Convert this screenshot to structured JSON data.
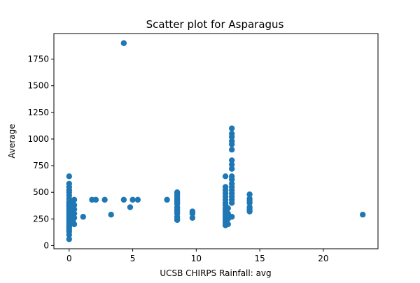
{
  "chart_data": {
    "type": "scatter",
    "title": "Scatter plot for Asparagus",
    "xlabel": "UCSB CHIRPS Rainfall: avg",
    "ylabel": "Average",
    "xlim": [
      -1.2,
      24.3
    ],
    "ylim": [
      -30,
      1990
    ],
    "xticks": [
      0,
      5,
      10,
      15,
      20
    ],
    "xtick_labels": [
      "0",
      "5",
      "10",
      "15",
      "20"
    ],
    "yticks": [
      0,
      250,
      500,
      750,
      1000,
      1250,
      1500,
      1750
    ],
    "ytick_labels": [
      "0",
      "250",
      "500",
      "750",
      "1000",
      "1250",
      "1500",
      "1750"
    ],
    "grid": false,
    "marker_color": "#1f77b4",
    "series": [
      {
        "points": [
          [
            0,
            60
          ],
          [
            0,
            100
          ],
          [
            0,
            130
          ],
          [
            0,
            150
          ],
          [
            0,
            170
          ],
          [
            0,
            190
          ],
          [
            0,
            210
          ],
          [
            0,
            230
          ],
          [
            0,
            250
          ],
          [
            0,
            270
          ],
          [
            0,
            290
          ],
          [
            0,
            310
          ],
          [
            0,
            330
          ],
          [
            0,
            350
          ],
          [
            0,
            370
          ],
          [
            0,
            390
          ],
          [
            0,
            410
          ],
          [
            0,
            440
          ],
          [
            0,
            470
          ],
          [
            0,
            500
          ],
          [
            0,
            520
          ],
          [
            0,
            550
          ],
          [
            0,
            580
          ],
          [
            0,
            650
          ],
          [
            0.1,
            200
          ],
          [
            0.1,
            240
          ],
          [
            0.1,
            280
          ],
          [
            0.1,
            320
          ],
          [
            0.1,
            360
          ],
          [
            0.1,
            400
          ],
          [
            0.2,
            210
          ],
          [
            0.2,
            250
          ],
          [
            0.2,
            290
          ],
          [
            0.2,
            330
          ],
          [
            0.2,
            370
          ],
          [
            0.2,
            420
          ],
          [
            0.3,
            230
          ],
          [
            0.3,
            270
          ],
          [
            0.3,
            310
          ],
          [
            0.3,
            350
          ],
          [
            0.3,
            390
          ],
          [
            0.4,
            200
          ],
          [
            0.4,
            260
          ],
          [
            0.4,
            300
          ],
          [
            0.4,
            340
          ],
          [
            0.4,
            380
          ],
          [
            0.4,
            430
          ],
          [
            1.1,
            270
          ],
          [
            1.8,
            430
          ],
          [
            2.1,
            430
          ],
          [
            2.8,
            430
          ],
          [
            3.3,
            290
          ],
          [
            4.3,
            1900
          ],
          [
            4.3,
            430
          ],
          [
            4.8,
            360
          ],
          [
            5.0,
            430
          ],
          [
            5.4,
            430
          ],
          [
            7.7,
            430
          ],
          [
            8.5,
            240
          ],
          [
            8.5,
            250
          ],
          [
            8.5,
            270
          ],
          [
            8.5,
            300
          ],
          [
            8.5,
            320
          ],
          [
            8.5,
            340
          ],
          [
            8.5,
            360
          ],
          [
            8.5,
            390
          ],
          [
            8.5,
            410
          ],
          [
            8.5,
            430
          ],
          [
            8.5,
            450
          ],
          [
            8.5,
            470
          ],
          [
            8.5,
            490
          ],
          [
            8.5,
            500
          ],
          [
            9.7,
            260
          ],
          [
            9.7,
            300
          ],
          [
            9.7,
            320
          ],
          [
            12.3,
            190
          ],
          [
            12.3,
            210
          ],
          [
            12.3,
            230
          ],
          [
            12.3,
            250
          ],
          [
            12.3,
            270
          ],
          [
            12.3,
            290
          ],
          [
            12.3,
            310
          ],
          [
            12.3,
            330
          ],
          [
            12.3,
            350
          ],
          [
            12.3,
            380
          ],
          [
            12.3,
            400
          ],
          [
            12.3,
            430
          ],
          [
            12.3,
            460
          ],
          [
            12.3,
            490
          ],
          [
            12.3,
            520
          ],
          [
            12.3,
            550
          ],
          [
            12.3,
            650
          ],
          [
            12.5,
            200
          ],
          [
            12.5,
            250
          ],
          [
            12.5,
            300
          ],
          [
            12.5,
            350
          ],
          [
            12.8,
            270
          ],
          [
            12.8,
            400
          ],
          [
            12.8,
            430
          ],
          [
            12.8,
            460
          ],
          [
            12.8,
            490
          ],
          [
            12.8,
            520
          ],
          [
            12.8,
            550
          ],
          [
            12.8,
            580
          ],
          [
            12.8,
            620
          ],
          [
            12.8,
            650
          ],
          [
            12.8,
            720
          ],
          [
            12.8,
            760
          ],
          [
            12.8,
            800
          ],
          [
            12.8,
            900
          ],
          [
            12.8,
            950
          ],
          [
            12.8,
            980
          ],
          [
            12.8,
            1020
          ],
          [
            12.8,
            1050
          ],
          [
            12.8,
            1100
          ],
          [
            14.2,
            320
          ],
          [
            14.2,
            340
          ],
          [
            14.2,
            360
          ],
          [
            14.2,
            400
          ],
          [
            14.2,
            420
          ],
          [
            14.2,
            440
          ],
          [
            14.2,
            480
          ],
          [
            23.1,
            290
          ]
        ]
      }
    ]
  }
}
